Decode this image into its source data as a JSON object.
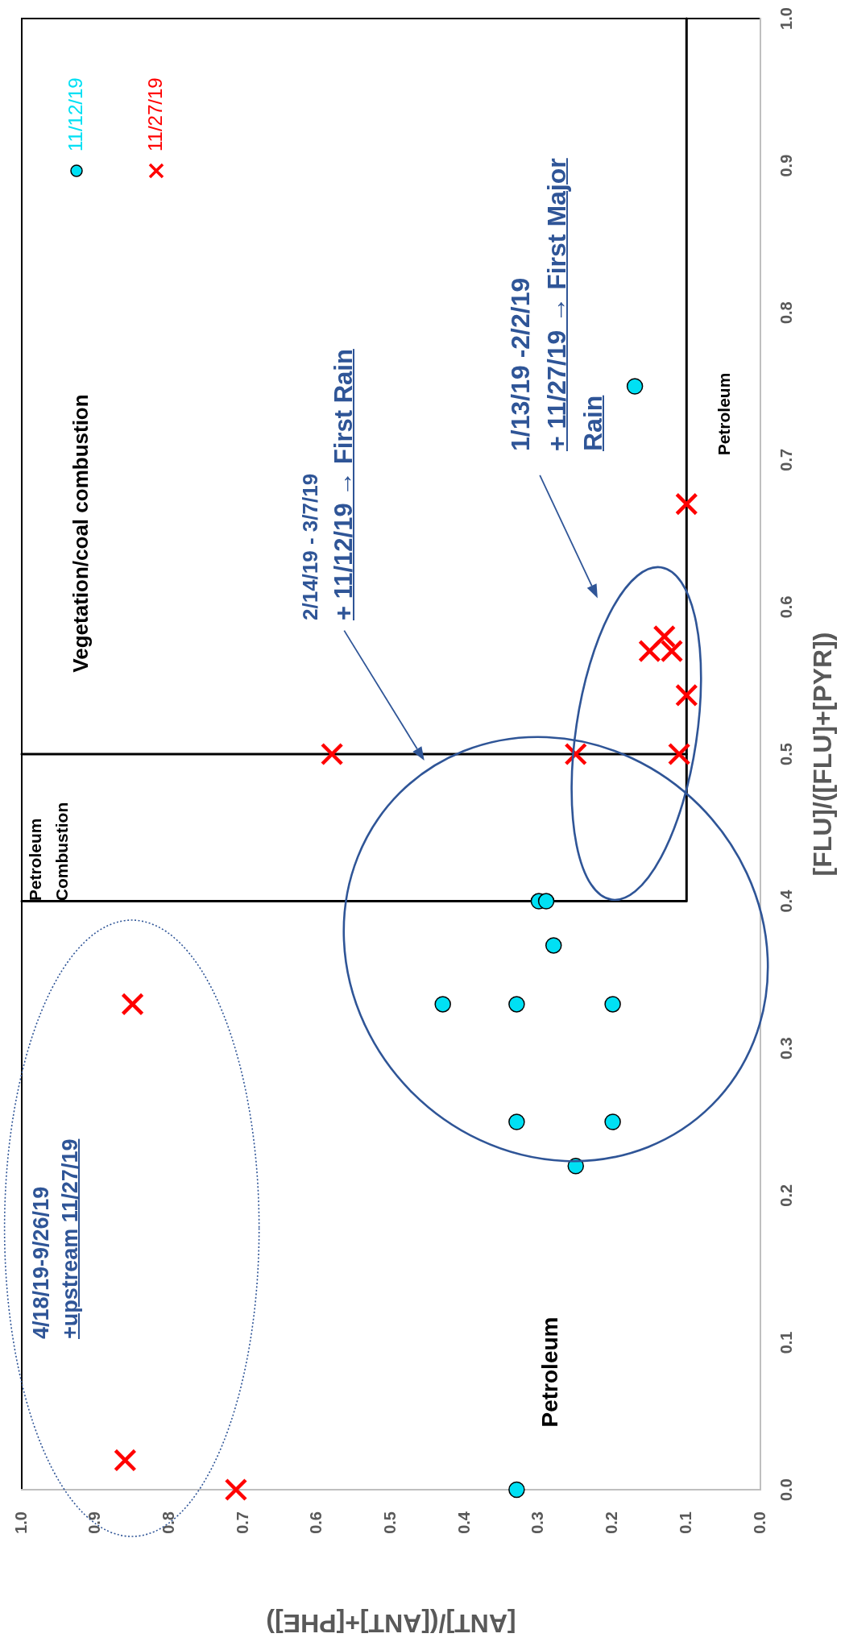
{
  "chart_data": {
    "type": "scatter",
    "xlabel": "[ANT]/([ANT]+[PHE])",
    "ylabel": "[FLU]/([FLU]+[PYR])",
    "xlim": [
      1,
      0
    ],
    "ylim": [
      0,
      1
    ],
    "xticks": [
      {
        "value": 1,
        "label": "1.0"
      },
      0.9,
      0.8,
      0.7,
      0.6,
      0.5,
      0.4,
      0.3,
      0.2,
      0.1,
      {
        "value": 0,
        "label": "0.0"
      }
    ],
    "yticks": [
      {
        "value": 0,
        "label": "0.0"
      },
      0.1,
      0.2,
      0.3,
      0.4,
      0.5,
      0.6,
      0.7,
      0.8,
      0.9,
      {
        "value": 1,
        "label": "1.0"
      }
    ],
    "legend": "top left",
    "series": [
      {
        "name": "11/12/19",
        "color": "#00e0f4",
        "marker": "circle",
        "x": [
          0.33,
          0.25,
          0.33,
          0.2,
          0.43,
          0.33,
          0.2,
          0.28,
          0.3,
          0.29,
          0.17
        ],
        "values": [
          0,
          0.22,
          0.25,
          0.25,
          0.33,
          0.33,
          0.33,
          0.37,
          0.4,
          0.4,
          0.75
        ]
      },
      {
        "name": "11/27/19",
        "color": "#ff0000",
        "marker": "cross",
        "x": [
          0.71,
          0.86,
          0.85,
          0.58,
          0.25,
          0.11,
          0.1,
          0.15,
          0.12,
          0.13,
          0.1
        ],
        "values": [
          0,
          0.02,
          0.33,
          0.5,
          0.5,
          0.5,
          0.54,
          0.57,
          0.57,
          0.58,
          0.67
        ]
      },
      {
        "type": "line",
        "color": "#000000",
        "marker": "none",
        "x": [
          1,
          0.1,
          0.1
        ],
        "values": [
          0.4,
          0.4,
          1
        ]
      },
      {
        "type": "line",
        "color": "#000000",
        "marker": "none",
        "x": [
          1,
          0.1
        ],
        "values": [
          0.5,
          0.5
        ]
      }
    ],
    "annotations": [
      "Vegetation/coal combustion",
      "Petroleum Combustion",
      "Petroleum",
      "Petroleum",
      "2/14/19 - 3/7/19\n+ 11/12/19 → First Rain",
      "1/13/19 -2/2/19\n+ 11/27/19 → First Major Rain",
      "4/18/19-9/26/19\n+upstream 11/27/19"
    ]
  }
}
